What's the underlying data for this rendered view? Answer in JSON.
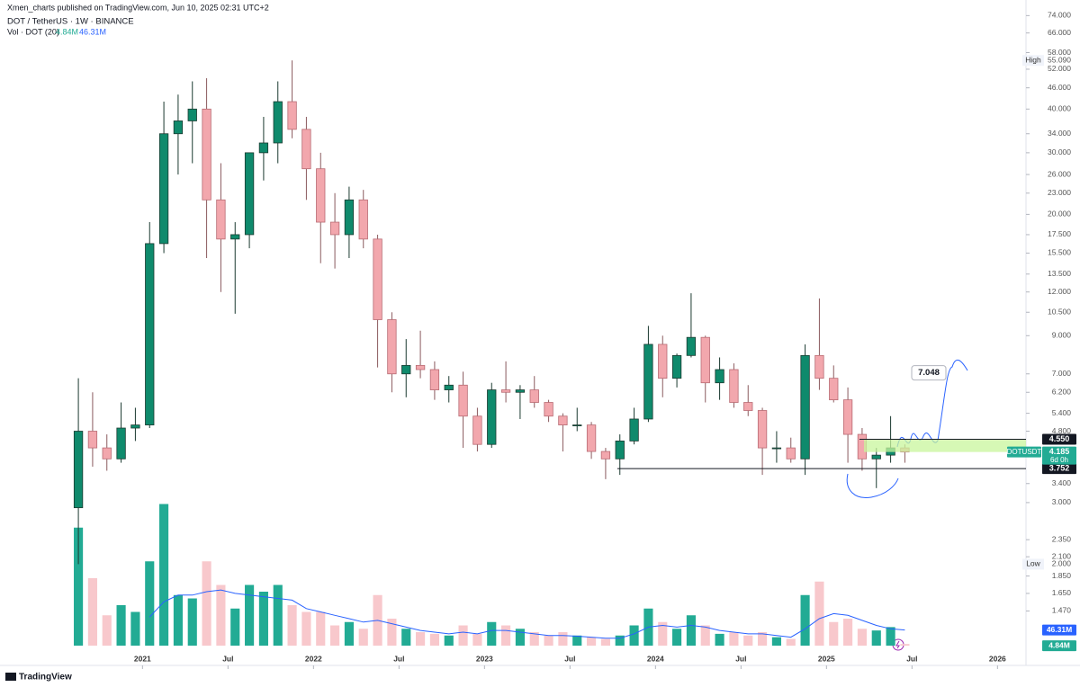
{
  "chart_data": {
    "type": "candlestick",
    "attribution": "Xmen_charts published on TradingView.com, Jun 10, 2025 02:31 UTC+2",
    "title": "DOT / TetherUS · 1W · BINANCE",
    "brand": "TradingView",
    "log_scale": true,
    "grid": false,
    "up_color": "#0f8a6c",
    "down_color": "#f2a7ad",
    "x": [
      "2020-08",
      "2020-09",
      "2020-10",
      "2020-11",
      "2020-12",
      "2021-01",
      "2021-02",
      "2021-03",
      "2021-04",
      "2021-05",
      "2021-06",
      "2021-07",
      "2021-08",
      "2021-09",
      "2021-10",
      "2021-11",
      "2021-12",
      "2022-01",
      "2022-02",
      "2022-03",
      "2022-04",
      "2022-05",
      "2022-06",
      "2022-07",
      "2022-08",
      "2022-09",
      "2022-10",
      "2022-11",
      "2022-12",
      "2023-01",
      "2023-02",
      "2023-03",
      "2023-04",
      "2023-05",
      "2023-06",
      "2023-07",
      "2023-08",
      "2023-09",
      "2023-10",
      "2023-11",
      "2023-12",
      "2024-01",
      "2024-02",
      "2024-03",
      "2024-04",
      "2024-05",
      "2024-06",
      "2024-07",
      "2024-08",
      "2024-09",
      "2024-10",
      "2024-11",
      "2024-12",
      "2025-01",
      "2025-02",
      "2025-03",
      "2025-04",
      "2025-05",
      "2025-06"
    ],
    "open": [
      2.9,
      4.8,
      4.3,
      4.0,
      4.9,
      5.0,
      16.5,
      34,
      37,
      40,
      22,
      17,
      17.5,
      30,
      32,
      42,
      35,
      27,
      19,
      17.5,
      22,
      17,
      10,
      7,
      7.4,
      7.2,
      6.3,
      6.5,
      5.3,
      4.4,
      6.3,
      6.2,
      6.3,
      5.8,
      5.3,
      5.0,
      5.0,
      4.2,
      4.0,
      4.5,
      5.2,
      8.5,
      6.8,
      7.9,
      8.9,
      6.6,
      7.2,
      5.8,
      5.5,
      4.3,
      4.3,
      4.0,
      7.9,
      6.8,
      5.9,
      4.7,
      4.0,
      4.1,
      4.3
    ],
    "high": [
      6.8,
      6.2,
      4.7,
      5.8,
      5.6,
      19,
      42,
      44,
      48,
      49,
      28,
      19,
      30,
      38,
      48,
      55.09,
      38,
      30,
      23,
      24,
      23.5,
      17.5,
      10.5,
      8.8,
      9.3,
      7.6,
      6.9,
      7.1,
      5.6,
      6.6,
      7.6,
      6.5,
      6.9,
      5.9,
      5.4,
      5.6,
      5.1,
      4.3,
      4.7,
      5.6,
      9.6,
      9.0,
      8.0,
      11.9,
      9.0,
      7.8,
      7.5,
      6.5,
      5.6,
      4.8,
      4.6,
      8.5,
      11.5,
      7.4,
      6.4,
      4.9,
      4.3,
      5.3,
      4.4
    ],
    "low": [
      2.0,
      3.8,
      3.7,
      3.9,
      4.5,
      4.9,
      15.5,
      26,
      28,
      15,
      12,
      10.4,
      16,
      25,
      28,
      33,
      22,
      14.5,
      14,
      15,
      16,
      7.3,
      6.2,
      6.0,
      6.8,
      5.9,
      5.8,
      4.3,
      4.2,
      4.3,
      5.8,
      5.2,
      5.6,
      5.1,
      4.2,
      4.8,
      4.0,
      3.5,
      3.6,
      4.4,
      5.1,
      6.0,
      6.4,
      7.8,
      5.8,
      5.9,
      5.6,
      5.3,
      3.6,
      3.9,
      3.9,
      3.6,
      6.3,
      5.8,
      3.9,
      3.7,
      3.3,
      3.9,
      3.9
    ],
    "close": [
      4.8,
      4.3,
      4.0,
      4.9,
      5.0,
      16.5,
      34,
      37,
      40,
      22,
      17,
      17.5,
      30,
      32,
      42,
      35,
      27,
      19,
      17.5,
      22,
      17,
      10,
      7,
      7.4,
      7.2,
      6.3,
      6.5,
      5.3,
      4.4,
      6.3,
      6.2,
      6.3,
      5.8,
      5.3,
      5.0,
      5.0,
      4.2,
      4.0,
      4.5,
      5.2,
      8.5,
      6.8,
      7.9,
      8.9,
      6.6,
      7.2,
      5.8,
      5.5,
      4.3,
      4.3,
      4.0,
      7.9,
      6.8,
      5.9,
      4.7,
      4.0,
      4.1,
      4.3,
      4.185
    ],
    "xlim": [
      "2020-03",
      "2026-03"
    ],
    "xticks": [
      {
        "value": "2021-01",
        "label": "2021"
      },
      {
        "value": "2021-07",
        "label": "Jul"
      },
      {
        "value": "2022-01",
        "label": "2022"
      },
      {
        "value": "2022-07",
        "label": "Jul"
      },
      {
        "value": "2023-01",
        "label": "2023"
      },
      {
        "value": "2023-07",
        "label": "Jul"
      },
      {
        "value": "2024-01",
        "label": "2024"
      },
      {
        "value": "2024-07",
        "label": "Jul"
      },
      {
        "value": "2025-01",
        "label": "2025"
      },
      {
        "value": "2025-07",
        "label": "Jul"
      },
      {
        "value": "2026-01",
        "label": "2026"
      }
    ],
    "ylim": [
      1.17,
      82
    ],
    "yticks": [
      {
        "value": 74,
        "label": "74.000"
      },
      {
        "value": 66,
        "label": "66.000"
      },
      {
        "value": 58,
        "label": "58.000"
      },
      {
        "value": 52,
        "label": "52.000"
      },
      {
        "value": 46,
        "label": "46.000"
      },
      {
        "value": 40,
        "label": "40.000"
      },
      {
        "value": 34,
        "label": "34.000"
      },
      {
        "value": 30,
        "label": "30.000"
      },
      {
        "value": 26,
        "label": "26.000"
      },
      {
        "value": 23,
        "label": "23.000"
      },
      {
        "value": 20,
        "label": "20.000"
      },
      {
        "value": 17.5,
        "label": "17.500"
      },
      {
        "value": 15.5,
        "label": "15.500"
      },
      {
        "value": 13.5,
        "label": "13.500"
      },
      {
        "value": 12,
        "label": "12.000"
      },
      {
        "value": 10.5,
        "label": "10.500"
      },
      {
        "value": 9,
        "label": "9.000"
      },
      {
        "value": 7,
        "label": "7.000"
      },
      {
        "value": 6.2,
        "label": "6.200"
      },
      {
        "value": 5.4,
        "label": "5.400"
      },
      {
        "value": 4.8,
        "label": "4.800"
      },
      {
        "value": 3.4,
        "label": "3.400"
      },
      {
        "value": 3,
        "label": "3.000"
      },
      {
        "value": 2.35,
        "label": "2.350"
      },
      {
        "value": 2.1,
        "label": "2.100"
      },
      {
        "value": 1.85,
        "label": "1.850"
      },
      {
        "value": 1.65,
        "label": "1.650"
      },
      {
        "value": 1.47,
        "label": "1.470"
      }
    ],
    "volume": {
      "name": "Vol · DOT (20)",
      "up_color": "#22ab94",
      "down_color": "#f8c8cc",
      "ma_color": "#2962ff",
      "ylim": [
        0,
        480
      ],
      "values": [
        350,
        200,
        90,
        120,
        100,
        250,
        420,
        150,
        140,
        250,
        180,
        110,
        180,
        160,
        180,
        120,
        100,
        100,
        60,
        70,
        50,
        150,
        80,
        50,
        40,
        35,
        30,
        60,
        35,
        70,
        60,
        50,
        40,
        30,
        40,
        30,
        25,
        20,
        30,
        60,
        110,
        70,
        50,
        90,
        60,
        35,
        40,
        30,
        40,
        25,
        20,
        150,
        190,
        70,
        80,
        50,
        45,
        55,
        4.84
      ],
      "ma": [
        null,
        null,
        null,
        null,
        null,
        85,
        130,
        150,
        150,
        160,
        165,
        155,
        150,
        145,
        140,
        135,
        110,
        100,
        90,
        80,
        70,
        75,
        65,
        55,
        45,
        40,
        35,
        40,
        35,
        45,
        45,
        40,
        35,
        30,
        30,
        28,
        25,
        22,
        22,
        35,
        55,
        60,
        55,
        60,
        55,
        45,
        40,
        35,
        35,
        30,
        25,
        50,
        80,
        95,
        90,
        75,
        60,
        50,
        46.31
      ],
      "last_tag": {
        "value": 4.84,
        "label": "4.84M"
      },
      "ma_tag": {
        "value": 46.31,
        "label": "46.31M"
      }
    },
    "high_marker": {
      "label": "High",
      "value": 55.09,
      "value_label": "55.090"
    },
    "low_marker": {
      "label": "Low",
      "value": 2.0,
      "value_label": "2.000"
    },
    "price_tags": [
      {
        "value": 4.55,
        "label": "4.550"
      },
      {
        "value": 3.752,
        "label": "3.752"
      }
    ],
    "last_price": {
      "symbol": "DOTUSDT",
      "value": 4.185,
      "label": "4.185",
      "countdown": "6d 0h"
    },
    "target": {
      "value": 7.048,
      "label": "7.048"
    }
  }
}
